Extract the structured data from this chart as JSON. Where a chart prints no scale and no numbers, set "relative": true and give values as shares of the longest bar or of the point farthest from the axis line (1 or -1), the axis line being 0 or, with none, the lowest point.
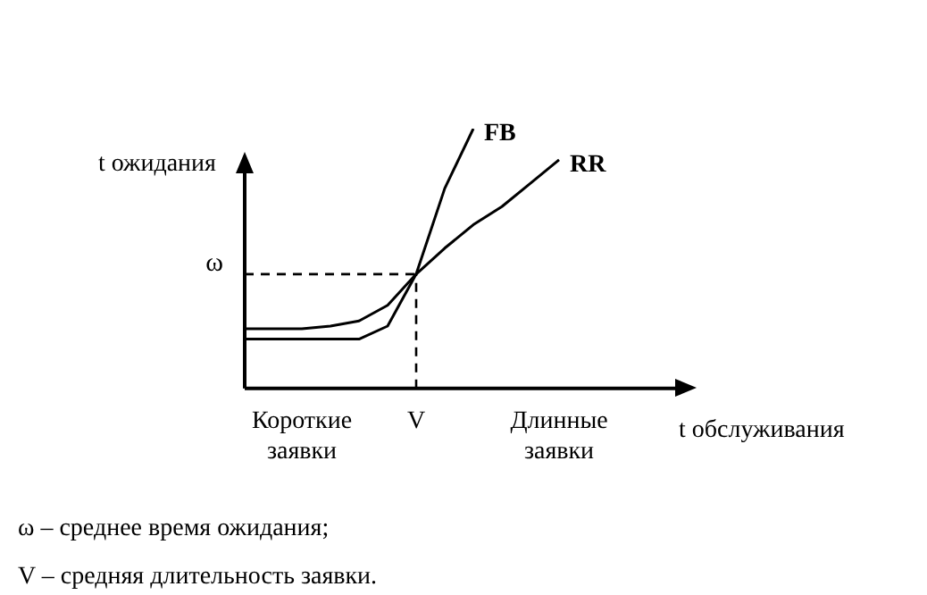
{
  "chart_data": {
    "type": "line",
    "relative": true,
    "xlabel": "t обслуживания",
    "ylabel": "t ожидания",
    "legend": false,
    "marker": "none",
    "line_style": "solid",
    "categories": [
      null,
      null,
      "Короткие заявки",
      null,
      null,
      null,
      "V",
      null,
      null,
      null,
      null,
      "Длинные заявки"
    ],
    "series": [
      {
        "name": "FB",
        "color": "#000000",
        "values": [
          0.19,
          0.19,
          0.19,
          0.19,
          0.19,
          0.24,
          0.44,
          0.77,
          1,
          null,
          null,
          null
        ]
      },
      {
        "name": "RR",
        "color": "#000000",
        "values": [
          0.23,
          0.23,
          0.23,
          0.24,
          0.26,
          0.32,
          0.44,
          0.54,
          0.63,
          0.7,
          0.79,
          0.88
        ]
      }
    ],
    "ref_lines": [
      {
        "axis": "y",
        "value": 0.44,
        "label": "ω",
        "line_style": "dashed"
      },
      {
        "axis": "x",
        "value": "V",
        "line_style": "dashed"
      }
    ],
    "annotations": [
      "ω – среднее время ожидания;",
      "V – средняя длительность заявки."
    ]
  }
}
